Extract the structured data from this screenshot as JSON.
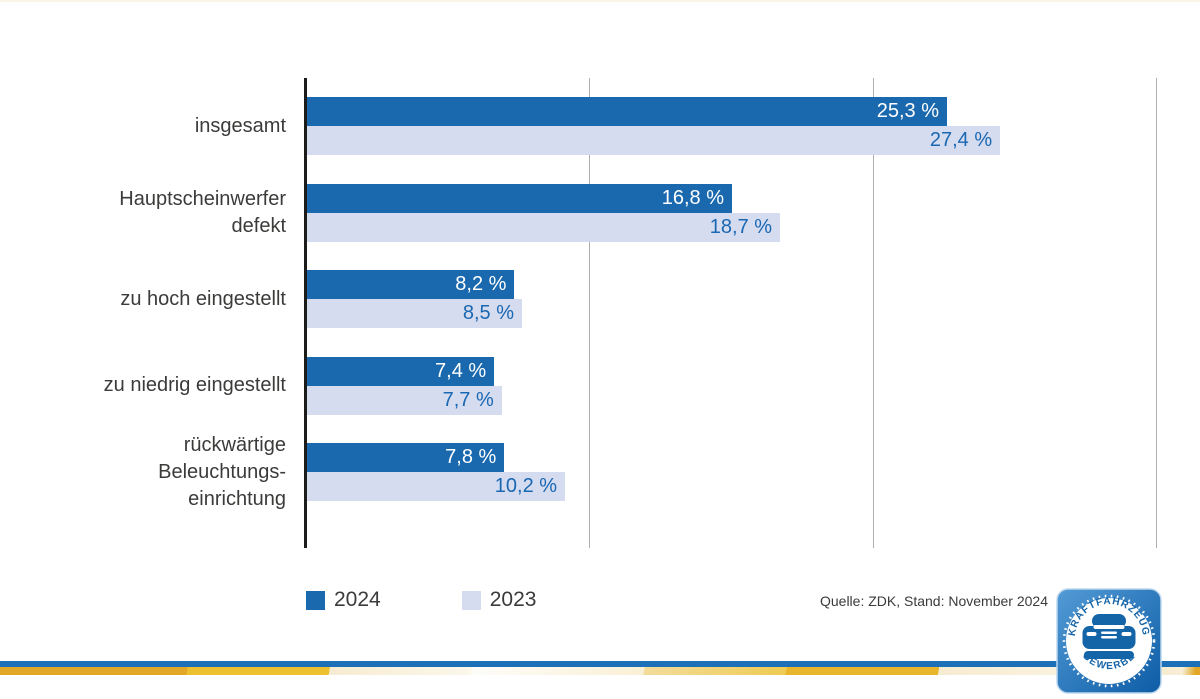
{
  "chart_data": {
    "type": "bar",
    "orientation": "horizontal",
    "title": "",
    "xlabel": "",
    "ylabel": "",
    "categories": [
      "insgesamt",
      "Hauptscheinwerfer\ndefekt",
      "zu hoch eingestellt",
      "zu niedrig eingestellt",
      "rückwärtige\nBeleuchtungs-\neinrichtung"
    ],
    "series": [
      {
        "name": "2024",
        "values": [
          25.3,
          16.8,
          8.2,
          7.4,
          7.8
        ],
        "display": [
          "25,3 %",
          "16,8 %",
          "8,2 %",
          "7,4 %",
          "7,8 %"
        ],
        "color": "#1a69ae",
        "value_text_color": "#ffffff"
      },
      {
        "name": "2023",
        "values": [
          27.4,
          18.7,
          8.5,
          7.7,
          10.2
        ],
        "display": [
          "27,4 %",
          "18,7 %",
          "8,5 %",
          "7,7 %",
          "10,2 %"
        ],
        "color": "#d5dcf0",
        "value_text_color": "#1a67b2"
      }
    ],
    "xlim": [
      0,
      33.6
    ],
    "grid": true,
    "gridlines_percent": [
      11.2,
      22.4,
      33.6
    ],
    "grid_color": "#aeaeae",
    "axis_color": "#1c1c1b",
    "legend_position": "bottom-left"
  },
  "source_note": "Quelle: ZDK, Stand: November 2024",
  "logo": {
    "arc_top": "KRAFTFAHRZEUG",
    "arc_bottom": "GEWERBE"
  },
  "colors": {
    "bar_2024": "#1a69ae",
    "bar_2023": "#d5dcf0",
    "value_on_2023": "#1a67b2",
    "footer_blue": "#1d70b7",
    "footer_gold": "#e2a727",
    "text": "#3b3b3a"
  }
}
